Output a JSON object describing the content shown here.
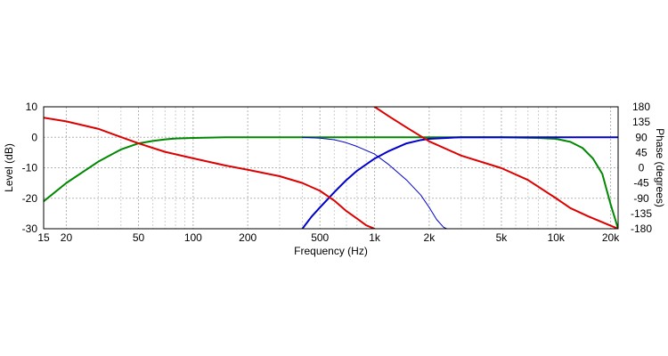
{
  "chart_data": {
    "type": "line",
    "title": "",
    "xlabel": "Frequency (Hz)",
    "ylabel": "Level (dB)",
    "y2label": "Phase (degrees)",
    "xscale": "log",
    "xlim": [
      15,
      22000
    ],
    "ylim": [
      -30,
      10
    ],
    "y2lim": [
      -180,
      180
    ],
    "grid": true,
    "legend": "none",
    "x_ticks": [
      {
        "value": 15,
        "label": "15"
      },
      {
        "value": 20,
        "label": "20"
      },
      {
        "value": 50,
        "label": "50"
      },
      {
        "value": 100,
        "label": "100"
      },
      {
        "value": 200,
        "label": "200"
      },
      {
        "value": 500,
        "label": "500"
      },
      {
        "value": 1000,
        "label": "1k"
      },
      {
        "value": 2000,
        "label": "2k"
      },
      {
        "value": 5000,
        "label": "5k"
      },
      {
        "value": 10000,
        "label": "10k"
      },
      {
        "value": 20000,
        "label": "20k"
      }
    ],
    "y_ticks": [
      {
        "value": 10,
        "label": "10"
      },
      {
        "value": 0,
        "label": "0"
      },
      {
        "value": -10,
        "label": "-10"
      },
      {
        "value": -20,
        "label": "-20"
      },
      {
        "value": -30,
        "label": "-30"
      }
    ],
    "y2_ticks": [
      {
        "value": 180,
        "label": "180"
      },
      {
        "value": 135,
        "label": "135"
      },
      {
        "value": 90,
        "label": "90"
      },
      {
        "value": 45,
        "label": "45"
      },
      {
        "value": 0,
        "label": "0"
      },
      {
        "value": -45,
        "label": "-45"
      },
      {
        "value": -90,
        "label": "-90"
      },
      {
        "value": -135,
        "label": "-135"
      },
      {
        "value": -180,
        "label": "-180"
      }
    ],
    "series": [
      {
        "color": "#008800",
        "axis": "left",
        "width": 2,
        "x": [
          15,
          20,
          30,
          40,
          50,
          60,
          70,
          80,
          100,
          150,
          200,
          300,
          1000,
          5000,
          8000,
          10000,
          12000,
          14000,
          16000,
          18000,
          20000,
          22000
        ],
        "y": [
          -21,
          -15,
          -8,
          -4,
          -2,
          -1.2,
          -0.7,
          -0.4,
          -0.2,
          0,
          0,
          0,
          0,
          0,
          -0.2,
          -0.5,
          -1.5,
          -3.5,
          -7,
          -12,
          -22,
          -30
        ]
      },
      {
        "color": "#0000cc",
        "axis": "left",
        "width": 2,
        "x": [
          400,
          450,
          500,
          600,
          700,
          800,
          1000,
          1200,
          1500,
          1800,
          2000,
          2500,
          3000,
          4000,
          22000
        ],
        "y": [
          -30,
          -26,
          -23,
          -18,
          -14,
          -11,
          -7,
          -4.5,
          -2,
          -0.9,
          -0.5,
          -0.2,
          0,
          0,
          0
        ]
      },
      {
        "color": "#0000cc",
        "axis": "left",
        "width": 1,
        "x": [
          400,
          500,
          600,
          700,
          800,
          1000,
          1200,
          1500,
          1800,
          2000,
          2200,
          2400,
          2500
        ],
        "y": [
          0,
          -0.3,
          -0.8,
          -1.8,
          -3,
          -5.5,
          -9,
          -14,
          -19,
          -23,
          -27,
          -29.5,
          -30
        ]
      },
      {
        "color": "#dd0000",
        "axis": "right",
        "width": 2,
        "x": [
          15,
          20,
          30,
          50,
          70,
          100,
          150,
          200,
          300,
          400,
          500,
          600,
          700,
          800,
          900,
          1000
        ],
        "y": [
          148,
          137,
          115,
          72,
          47,
          28,
          7,
          -6,
          -25,
          -45,
          -68,
          -97,
          -128,
          -150,
          -170,
          -180
        ]
      },
      {
        "color": "#dd0000",
        "axis": "right",
        "width": 2,
        "x": [
          1000,
          1200,
          1500,
          2000,
          3000,
          5000,
          7000,
          10000,
          12000,
          15000,
          20000,
          22000
        ],
        "y": [
          180,
          152,
          119,
          78,
          36,
          -1,
          -36,
          -90,
          -119,
          -143,
          -171,
          -180
        ]
      }
    ]
  }
}
